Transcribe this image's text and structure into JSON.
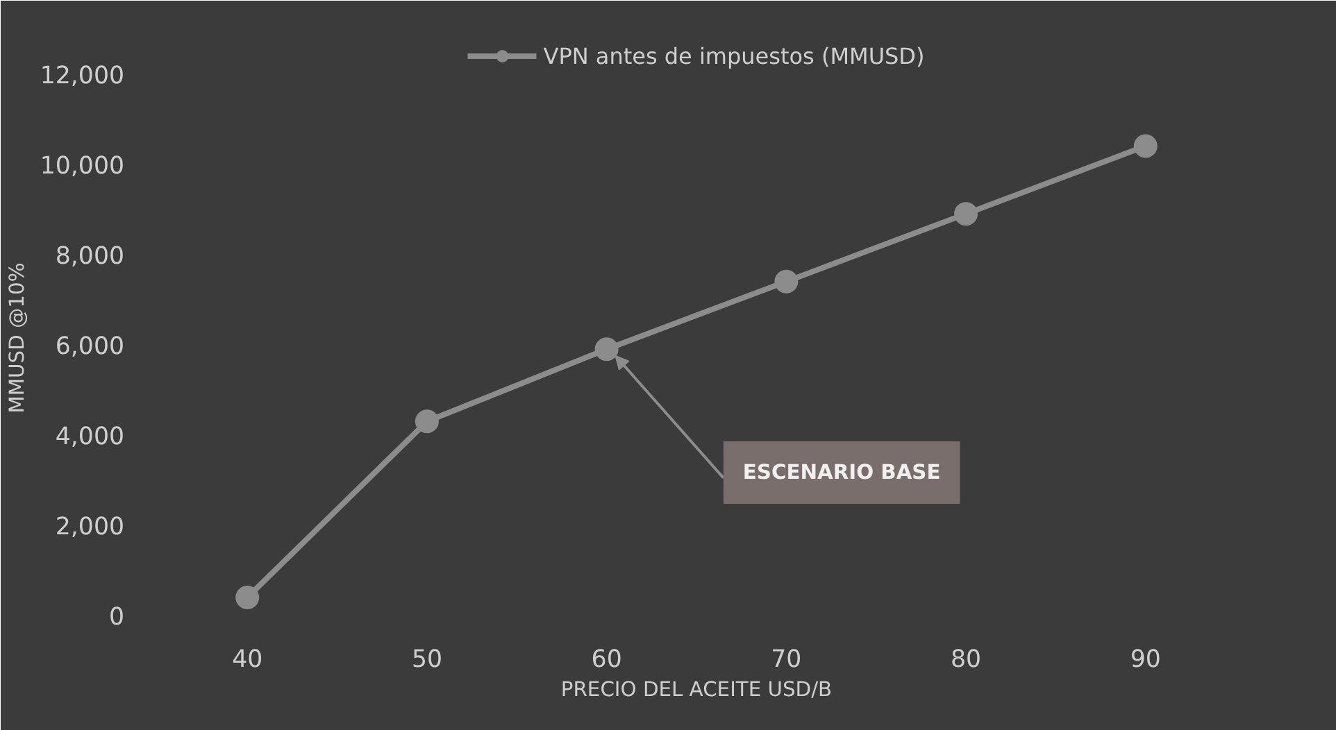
{
  "chart_data": {
    "type": "line",
    "xlabel": "PRECIO DEL ACEITE USD/B",
    "ylabel": "MMUSD @10%",
    "categories": [
      "40",
      "50",
      "60",
      "70",
      "80",
      "90"
    ],
    "series": [
      {
        "name": "VPN antes de impuestos (MMUSD)",
        "color": "#8c8c8c",
        "values": [
          400,
          4300,
          5900,
          7400,
          8900,
          10400
        ]
      }
    ],
    "ylim": [
      -400,
      12700
    ],
    "yticks": [
      {
        "value": 0,
        "label": "0"
      },
      {
        "value": 2000,
        "label": "2,000"
      },
      {
        "value": 4000,
        "label": "4,000"
      },
      {
        "value": 6000,
        "label": "6,000"
      },
      {
        "value": 8000,
        "label": "8,000"
      },
      {
        "value": 10000,
        "label": "10,000"
      },
      {
        "value": 12000,
        "label": "12,000"
      }
    ],
    "annotations": [
      {
        "text": "ESCENARIO BASE",
        "x": "60",
        "y": 5900
      }
    ],
    "marker": "circle",
    "line_style": "solid",
    "grid": false,
    "legend": "top"
  }
}
